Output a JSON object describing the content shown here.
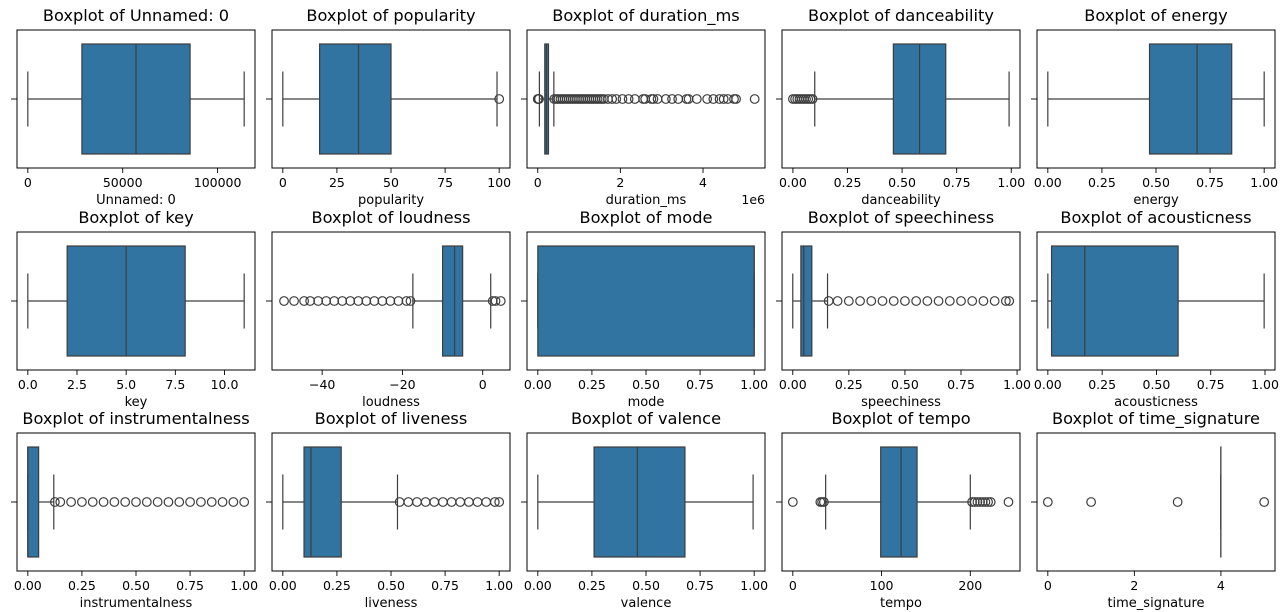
{
  "figure": {
    "background": "#ffffff"
  },
  "style": {
    "box_fill": "#3274a1",
    "line_color": "#3d3d3d",
    "flier_edge": "#3d3d3d"
  },
  "chart_data": [
    {
      "type": "boxplot",
      "title": "Boxplot of Unnamed: 0",
      "xlabel": "Unnamed: 0",
      "xlim": [
        -5700,
        119700
      ],
      "ticks": [
        0,
        50000,
        100000
      ],
      "tick_labels": [
        "0",
        "50000",
        "100000"
      ],
      "whisker_low": 0,
      "q1": 28500,
      "median": 57000,
      "q3": 85500,
      "whisker_high": 113999,
      "fliers": []
    },
    {
      "type": "boxplot",
      "title": "Boxplot of popularity",
      "xlabel": "popularity",
      "xlim": [
        -5,
        105
      ],
      "ticks": [
        0,
        25,
        50,
        75,
        100
      ],
      "tick_labels": [
        "0",
        "25",
        "50",
        "75",
        "100"
      ],
      "whisker_low": 0,
      "q1": 17,
      "median": 35,
      "q3": 50,
      "whisker_high": 99,
      "fliers": [
        100
      ]
    },
    {
      "type": "boxplot",
      "title": "Boxplot of duration_ms",
      "xlabel": "duration_ms",
      "offset_label": "1e6",
      "xlim": [
        -0.26,
        5.5
      ],
      "ticks": [
        0,
        2,
        4
      ],
      "tick_labels": [
        "0",
        "2",
        "4"
      ],
      "whisker_low": 0.04,
      "q1": 0.17,
      "median": 0.21,
      "q3": 0.26,
      "whisker_high": 0.39,
      "fliers": [
        0.0,
        0.01,
        0.02,
        0.03,
        0.4,
        0.45,
        0.5,
        0.55,
        0.6,
        0.65,
        0.7,
        0.75,
        0.8,
        0.85,
        0.9,
        0.95,
        1.0,
        1.05,
        1.1,
        1.15,
        1.2,
        1.25,
        1.3,
        1.35,
        1.4,
        1.45,
        1.5,
        1.55,
        1.6,
        1.7,
        1.8,
        1.9,
        2.05,
        2.2,
        2.35,
        2.55,
        2.6,
        2.75,
        2.8,
        2.9,
        3.1,
        3.25,
        3.4,
        3.6,
        3.65,
        3.85,
        4.1,
        4.25,
        4.4,
        4.5,
        4.6,
        4.75,
        4.8,
        5.25
      ]
    },
    {
      "type": "boxplot",
      "title": "Boxplot of danceability",
      "xlabel": "danceability",
      "xlim": [
        -0.05,
        1.04
      ],
      "ticks": [
        0.0,
        0.25,
        0.5,
        0.75,
        1.0
      ],
      "tick_labels": [
        "0.00",
        "0.25",
        "0.50",
        "0.75",
        "1.00"
      ],
      "whisker_low": 0.1,
      "q1": 0.46,
      "median": 0.58,
      "q3": 0.7,
      "whisker_high": 0.99,
      "fliers": [
        0.0,
        0.01,
        0.02,
        0.03,
        0.04,
        0.05,
        0.06,
        0.07,
        0.08,
        0.09
      ]
    },
    {
      "type": "boxplot",
      "title": "Boxplot of energy",
      "xlabel": "energy",
      "xlim": [
        -0.05,
        1.05
      ],
      "ticks": [
        0.0,
        0.25,
        0.5,
        0.75,
        1.0
      ],
      "tick_labels": [
        "0.00",
        "0.25",
        "0.50",
        "0.75",
        "1.00"
      ],
      "whisker_low": 0.0,
      "q1": 0.47,
      "median": 0.69,
      "q3": 0.85,
      "whisker_high": 1.0,
      "fliers": []
    },
    {
      "type": "boxplot",
      "title": "Boxplot of key",
      "xlabel": "key",
      "xlim": [
        -0.55,
        11.55
      ],
      "ticks": [
        0,
        2.5,
        5,
        7.5,
        10
      ],
      "tick_labels": [
        "0.0",
        "2.5",
        "5.0",
        "7.5",
        "10.0"
      ],
      "whisker_low": 0,
      "q1": 2,
      "median": 5,
      "q3": 8,
      "whisker_high": 11,
      "fliers": []
    },
    {
      "type": "boxplot",
      "title": "Boxplot of loudness",
      "xlabel": "loudness",
      "xlim": [
        -52.5,
        6.8
      ],
      "ticks": [
        -40,
        -20,
        0
      ],
      "tick_labels": [
        "−40",
        "−20",
        "0"
      ],
      "whisker_low": -17.4,
      "q1": -10.0,
      "median": -7.0,
      "q3": -5.0,
      "whisker_high": 2.0,
      "fliers": [
        -49.5,
        -47.0,
        -44.5,
        -43,
        -41,
        -39,
        -37,
        -35,
        -33,
        -31,
        -29,
        -27,
        -25,
        -23,
        -21,
        -19,
        -18,
        2.5,
        3.2,
        4.5
      ]
    },
    {
      "type": "boxplot",
      "title": "Boxplot of mode",
      "xlabel": "mode",
      "xlim": [
        -0.05,
        1.05
      ],
      "ticks": [
        0.0,
        0.25,
        0.5,
        0.75,
        1.0
      ],
      "tick_labels": [
        "0.00",
        "0.25",
        "0.50",
        "0.75",
        "1.00"
      ],
      "whisker_low": 0,
      "q1": 0,
      "median": 1,
      "q3": 1,
      "whisker_high": 1,
      "fliers": []
    },
    {
      "type": "boxplot",
      "title": "Boxplot of speechiness",
      "xlabel": "speechiness",
      "xlim": [
        -0.048,
        1.013
      ],
      "ticks": [
        0.0,
        0.25,
        0.5,
        0.75,
        1.0
      ],
      "tick_labels": [
        "0.00",
        "0.25",
        "0.50",
        "0.75",
        "1.00"
      ],
      "whisker_low": 0.0,
      "q1": 0.036,
      "median": 0.049,
      "q3": 0.085,
      "whisker_high": 0.155,
      "fliers": [
        0.16,
        0.2,
        0.25,
        0.3,
        0.35,
        0.4,
        0.45,
        0.5,
        0.55,
        0.6,
        0.65,
        0.7,
        0.75,
        0.8,
        0.85,
        0.9,
        0.95,
        0.965
      ]
    },
    {
      "type": "boxplot",
      "title": "Boxplot of acousticness",
      "xlabel": "acousticness",
      "xlim": [
        -0.05,
        1.046
      ],
      "ticks": [
        0.0,
        0.25,
        0.5,
        0.75,
        1.0
      ],
      "tick_labels": [
        "0.00",
        "0.25",
        "0.50",
        "0.75",
        "1.00"
      ],
      "whisker_low": 0.0,
      "q1": 0.017,
      "median": 0.17,
      "q3": 0.6,
      "whisker_high": 0.996,
      "fliers": []
    },
    {
      "type": "boxplot",
      "title": "Boxplot of instrumentalness",
      "xlabel": "instrumentalness",
      "xlim": [
        -0.05,
        1.05
      ],
      "ticks": [
        0.0,
        0.25,
        0.5,
        0.75,
        1.0
      ],
      "tick_labels": [
        "0.00",
        "0.25",
        "0.50",
        "0.75",
        "1.00"
      ],
      "whisker_low": 0.0,
      "q1": 0.0,
      "median": 0.0,
      "q3": 0.05,
      "whisker_high": 0.12,
      "fliers": [
        0.125,
        0.15,
        0.2,
        0.25,
        0.3,
        0.35,
        0.4,
        0.45,
        0.5,
        0.55,
        0.6,
        0.65,
        0.7,
        0.75,
        0.8,
        0.85,
        0.9,
        0.95,
        1.0
      ]
    },
    {
      "type": "boxplot",
      "title": "Boxplot of liveness",
      "xlabel": "liveness",
      "xlim": [
        -0.05,
        1.05
      ],
      "ticks": [
        0.0,
        0.25,
        0.5,
        0.75,
        1.0
      ],
      "tick_labels": [
        "0.00",
        "0.25",
        "0.50",
        "0.75",
        "1.00"
      ],
      "whisker_low": 0.0,
      "q1": 0.098,
      "median": 0.13,
      "q3": 0.27,
      "whisker_high": 0.53,
      "fliers": [
        0.54,
        0.58,
        0.62,
        0.66,
        0.7,
        0.74,
        0.78,
        0.82,
        0.86,
        0.9,
        0.94,
        0.98,
        1.0
      ]
    },
    {
      "type": "boxplot",
      "title": "Boxplot of valence",
      "xlabel": "valence",
      "xlim": [
        -0.05,
        1.05
      ],
      "ticks": [
        0.0,
        0.25,
        0.5,
        0.75,
        1.0
      ],
      "tick_labels": [
        "0.00",
        "0.25",
        "0.50",
        "0.75",
        "1.00"
      ],
      "whisker_low": 0.0,
      "q1": 0.26,
      "median": 0.46,
      "q3": 0.68,
      "whisker_high": 0.995,
      "fliers": []
    },
    {
      "type": "boxplot",
      "title": "Boxplot of tempo",
      "xlabel": "tempo",
      "xlim": [
        -12.2,
        256
      ],
      "ticks": [
        0,
        100,
        200
      ],
      "tick_labels": [
        "0",
        "100",
        "200"
      ],
      "whisker_low": 37,
      "q1": 99,
      "median": 122,
      "q3": 140,
      "whisker_high": 200,
      "fliers": [
        0,
        31,
        33,
        35,
        202,
        205,
        208,
        211,
        214,
        217,
        220,
        223,
        243
      ]
    },
    {
      "type": "boxplot",
      "title": "Boxplot of time_signature",
      "xlabel": "time_signature",
      "xlim": [
        -0.25,
        5.25
      ],
      "ticks": [
        0,
        2,
        4
      ],
      "tick_labels": [
        "0",
        "2",
        "4"
      ],
      "whisker_low": 4,
      "q1": 4,
      "median": 4,
      "q3": 4,
      "whisker_high": 4,
      "fliers": [
        0,
        1,
        3,
        5
      ]
    }
  ]
}
